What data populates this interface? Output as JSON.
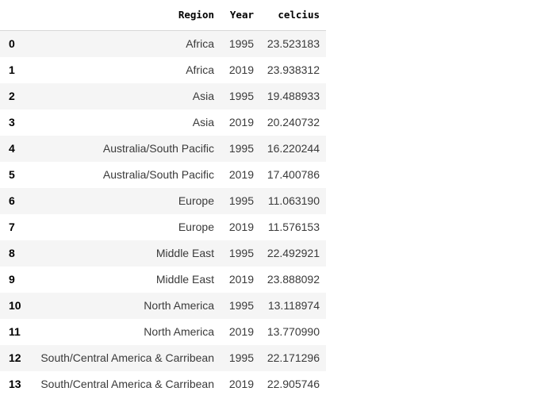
{
  "table": {
    "columns": {
      "region": "Region",
      "year": "Year",
      "celcius": "celcius"
    },
    "rows": [
      {
        "index": "0",
        "region": "Africa",
        "year": "1995",
        "celcius": "23.523183"
      },
      {
        "index": "1",
        "region": "Africa",
        "year": "2019",
        "celcius": "23.938312"
      },
      {
        "index": "2",
        "region": "Asia",
        "year": "1995",
        "celcius": "19.488933"
      },
      {
        "index": "3",
        "region": "Asia",
        "year": "2019",
        "celcius": "20.240732"
      },
      {
        "index": "4",
        "region": "Australia/South Pacific",
        "year": "1995",
        "celcius": "16.220244"
      },
      {
        "index": "5",
        "region": "Australia/South Pacific",
        "year": "2019",
        "celcius": "17.400786"
      },
      {
        "index": "6",
        "region": "Europe",
        "year": "1995",
        "celcius": "11.063190"
      },
      {
        "index": "7",
        "region": "Europe",
        "year": "2019",
        "celcius": "11.576153"
      },
      {
        "index": "8",
        "region": "Middle East",
        "year": "1995",
        "celcius": "22.492921"
      },
      {
        "index": "9",
        "region": "Middle East",
        "year": "2019",
        "celcius": "23.888092"
      },
      {
        "index": "10",
        "region": "North America",
        "year": "1995",
        "celcius": "13.118974"
      },
      {
        "index": "11",
        "region": "North America",
        "year": "2019",
        "celcius": "13.770990"
      },
      {
        "index": "12",
        "region": "South/Central America & Carribean",
        "year": "1995",
        "celcius": "22.171296"
      },
      {
        "index": "13",
        "region": "South/Central America & Carribean",
        "year": "2019",
        "celcius": "22.905746"
      }
    ]
  }
}
